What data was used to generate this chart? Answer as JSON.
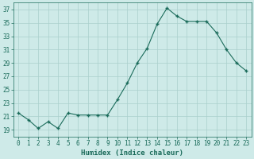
{
  "x": [
    0,
    1,
    2,
    3,
    4,
    5,
    6,
    7,
    8,
    9,
    10,
    11,
    12,
    13,
    14,
    15,
    16,
    17,
    18,
    19,
    20,
    21,
    22,
    23
  ],
  "y": [
    21.5,
    20.5,
    19.2,
    20.2,
    19.2,
    21.5,
    21.2,
    21.2,
    21.2,
    21.2,
    23.5,
    26.0,
    29.0,
    31.2,
    34.8,
    37.2,
    36.0,
    35.2,
    35.2,
    35.2,
    33.5,
    31.0,
    29.0,
    27.8
  ],
  "line_color": "#1a6b5a",
  "marker": "+",
  "marker_size": 3,
  "marker_lw": 1.0,
  "bg_color": "#ceeae8",
  "grid_color": "#aacfcc",
  "tick_color": "#1a6b5a",
  "xlabel": "Humidex (Indice chaleur)",
  "ylim": [
    18,
    38
  ],
  "yticks": [
    19,
    21,
    23,
    25,
    27,
    29,
    31,
    33,
    35,
    37
  ],
  "xticks": [
    0,
    1,
    2,
    3,
    4,
    5,
    6,
    7,
    8,
    9,
    10,
    11,
    12,
    13,
    14,
    15,
    16,
    17,
    18,
    19,
    20,
    21,
    22,
    23
  ],
  "label_fontsize": 6.5,
  "tick_fontsize": 5.5
}
